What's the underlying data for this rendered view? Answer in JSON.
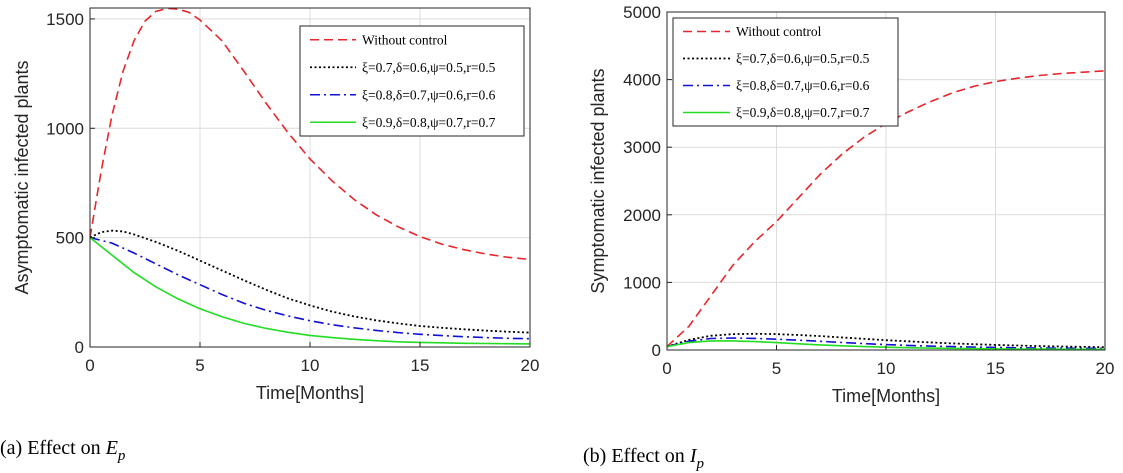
{
  "colors": {
    "without_control": "#e8262b",
    "control_1": "#000000",
    "control_2": "#1010d6",
    "control_3": "#22dd22"
  },
  "chart_data": [
    {
      "type": "line",
      "xlabel": "Time[Months]",
      "ylabel": "Asymptomatic infected plants",
      "xlim": [
        0,
        20
      ],
      "ylim": [
        0,
        1550
      ],
      "xticks": [
        0,
        5,
        10,
        15,
        20
      ],
      "yticks": [
        0,
        500,
        1000,
        1500
      ],
      "grid": true,
      "legend_position": "top-right",
      "caption_prefix": "(a) Effect on ",
      "caption_symbol": "E",
      "caption_sub": "p",
      "series": [
        {
          "name": "Without control",
          "dash": "dashed",
          "color": "#e8262b",
          "x": [
            0,
            0.5,
            1,
            1.5,
            2,
            2.5,
            3,
            3.5,
            4,
            4.5,
            5,
            6,
            7,
            8,
            9,
            10,
            11,
            12,
            13,
            14,
            15,
            16,
            17,
            18,
            19,
            20
          ],
          "y": [
            500,
            800,
            1060,
            1260,
            1400,
            1490,
            1535,
            1548,
            1545,
            1530,
            1495,
            1400,
            1260,
            1115,
            980,
            860,
            760,
            675,
            605,
            550,
            505,
            470,
            445,
            425,
            410,
            400
          ]
        },
        {
          "name": "ξ=0.7,δ=0.6,ψ=0.5,r=0.5",
          "dash": "dotted",
          "color": "#000000",
          "x": [
            0,
            0.5,
            1,
            1.5,
            2,
            3,
            4,
            5,
            6,
            7,
            8,
            9,
            10,
            11,
            12,
            13,
            14,
            15,
            16,
            17,
            18,
            19,
            20
          ],
          "y": [
            500,
            525,
            532,
            528,
            515,
            480,
            440,
            395,
            350,
            305,
            262,
            222,
            190,
            162,
            140,
            122,
            108,
            96,
            88,
            81,
            75,
            70,
            66
          ]
        },
        {
          "name": "ξ=0.8,δ=0.7,ψ=0.6,r=0.6",
          "dash": "dashdot",
          "color": "#1010d6",
          "x": [
            0,
            1,
            2,
            3,
            4,
            5,
            6,
            7,
            8,
            9,
            10,
            11,
            12,
            13,
            14,
            15,
            16,
            17,
            18,
            19,
            20
          ],
          "y": [
            500,
            475,
            430,
            380,
            330,
            285,
            240,
            200,
            168,
            142,
            120,
            102,
            88,
            76,
            66,
            58,
            52,
            47,
            43,
            40,
            38
          ]
        },
        {
          "name": "ξ=0.9,δ=0.8,ψ=0.7,r=0.7",
          "dash": "solid",
          "color": "#22dd22",
          "x": [
            0,
            1,
            2,
            3,
            4,
            5,
            6,
            7,
            8,
            9,
            10,
            11,
            12,
            13,
            14,
            15,
            16,
            17,
            18,
            19,
            20
          ],
          "y": [
            500,
            420,
            340,
            275,
            220,
            175,
            138,
            108,
            85,
            67,
            53,
            43,
            35,
            29,
            24,
            21,
            19,
            17,
            16,
            15,
            14
          ]
        }
      ]
    },
    {
      "type": "line",
      "xlabel": "Time[Months]",
      "ylabel": "Symptomatic infected plants",
      "xlim": [
        0,
        20
      ],
      "ylim": [
        0,
        5000
      ],
      "xticks": [
        0,
        5,
        10,
        15,
        20
      ],
      "yticks": [
        0,
        1000,
        2000,
        3000,
        4000,
        5000
      ],
      "grid": true,
      "legend_position": "top-left",
      "caption_prefix": "(b) Effect on ",
      "caption_symbol": "I",
      "caption_sub": "p",
      "series": [
        {
          "name": "Without control",
          "dash": "dashed",
          "color": "#e8262b",
          "x": [
            0,
            1,
            2,
            3,
            4,
            5,
            6,
            7,
            8,
            9,
            10,
            11,
            12,
            13,
            14,
            15,
            16,
            17,
            18,
            19,
            20
          ],
          "y": [
            50,
            350,
            800,
            1250,
            1600,
            1900,
            2250,
            2600,
            2900,
            3150,
            3350,
            3520,
            3670,
            3800,
            3900,
            3970,
            4020,
            4060,
            4090,
            4110,
            4130
          ]
        },
        {
          "name": "ξ=0.7,δ=0.6,ψ=0.5,r=0.5",
          "dash": "dotted",
          "color": "#000000",
          "x": [
            0,
            1,
            2,
            3,
            4,
            5,
            6,
            7,
            8,
            9,
            10,
            11,
            12,
            13,
            14,
            15,
            16,
            17,
            18,
            19,
            20
          ],
          "y": [
            50,
            150,
            210,
            235,
            240,
            235,
            222,
            205,
            185,
            165,
            145,
            128,
            112,
            98,
            86,
            75,
            66,
            58,
            52,
            47,
            42
          ]
        },
        {
          "name": "ξ=0.8,δ=0.7,ψ=0.6,r=0.6",
          "dash": "dashdot",
          "color": "#1010d6",
          "x": [
            0,
            1,
            2,
            3,
            4,
            5,
            6,
            7,
            8,
            9,
            10,
            11,
            12,
            13,
            14,
            15,
            16,
            17,
            18,
            19,
            20
          ],
          "y": [
            50,
            130,
            170,
            178,
            172,
            160,
            145,
            128,
            111,
            95,
            80,
            68,
            58,
            50,
            43,
            38,
            33,
            30,
            27,
            25,
            23
          ]
        },
        {
          "name": "ξ=0.9,δ=0.8,ψ=0.7,r=0.7",
          "dash": "solid",
          "color": "#22dd22",
          "x": [
            0,
            1,
            2,
            3,
            4,
            5,
            6,
            7,
            8,
            9,
            10,
            11,
            12,
            13,
            14,
            15,
            16,
            17,
            18,
            19,
            20
          ],
          "y": [
            50,
            110,
            135,
            135,
            125,
            110,
            92,
            76,
            62,
            50,
            41,
            34,
            28,
            23,
            20,
            17,
            15,
            13,
            12,
            11,
            10
          ]
        }
      ]
    }
  ]
}
